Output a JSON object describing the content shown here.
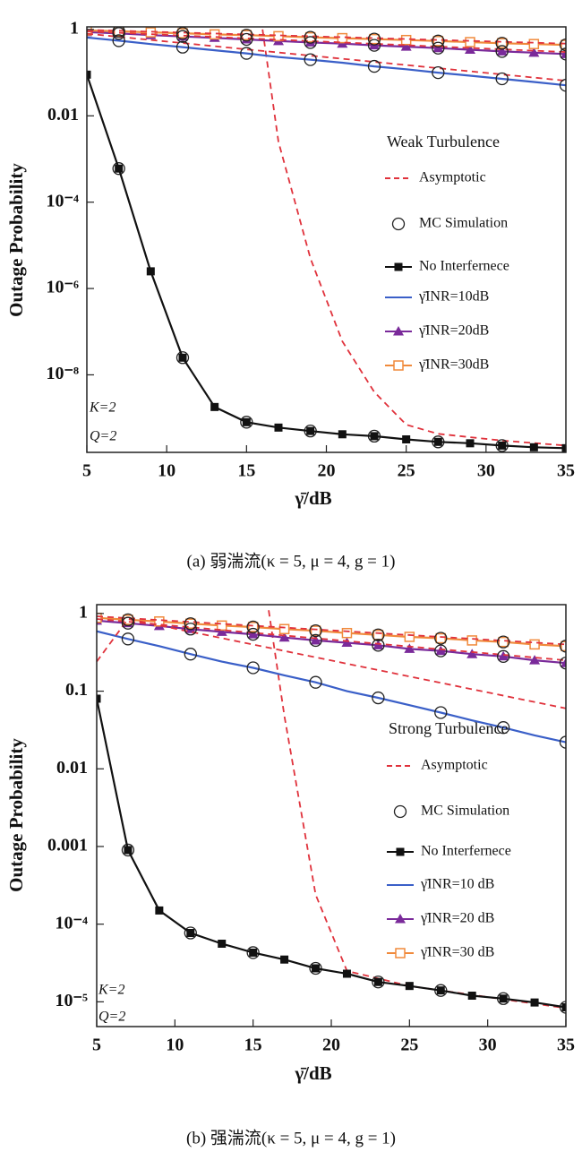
{
  "chart_data": [
    {
      "type": "line",
      "log_y": true,
      "y_label": "Outage Probability",
      "x_label": "γ̄/dB",
      "legend_title": "Weak Turbulence",
      "annotations": [
        "K=2",
        "Q=2"
      ],
      "caption": "(a)  弱湍流(κ = 5, μ = 4, g = 1)",
      "xlim": [
        5,
        35
      ],
      "xticks": [
        5,
        10,
        15,
        20,
        25,
        30,
        35
      ],
      "ylim": [
        1.6e-10,
        1.15
      ],
      "yticks": [
        1,
        0.01,
        {
          "value": 0.0001,
          "label": "10⁻⁴"
        },
        {
          "value": 1e-06,
          "label": "10⁻⁶"
        },
        {
          "value": 1e-08,
          "label": "10⁻⁸"
        }
      ],
      "series": [
        {
          "name": "Asymptotic",
          "color": "#e0323c",
          "style": "dashed",
          "line": true,
          "x": [
            16,
            17,
            19,
            21,
            23,
            25,
            27,
            31,
            35
          ],
          "values": [
            1,
            0.0025,
            5e-06,
            6e-08,
            4e-09,
            7e-10,
            4.3e-10,
            3e-10,
            2.3e-10
          ]
        },
        {
          "name": "MC Simulation",
          "color": "#222222",
          "line": false,
          "marker": "circle",
          "x": [
            7,
            11,
            15,
            19,
            23,
            27,
            31
          ],
          "values": [
            0.0006,
            2.5e-08,
            8e-10,
            5e-10,
            3.8e-10,
            2.8e-10,
            2.3e-10
          ]
        },
        {
          "name": "No Interfernece",
          "color": "#111111",
          "style": "solid",
          "line": true,
          "marker": "square",
          "x": [
            5,
            7,
            9,
            11,
            13,
            15,
            17,
            19,
            21,
            23,
            25,
            27,
            29,
            31,
            33,
            35
          ],
          "values": [
            0.09,
            0.0006,
            2.5e-06,
            2.5e-08,
            1.8e-09,
            8e-10,
            6e-10,
            5e-10,
            4.2e-10,
            3.8e-10,
            3.2e-10,
            2.8e-10,
            2.6e-10,
            2.3e-10,
            2.1e-10,
            2e-10
          ]
        },
        {
          "name": "γ̄INR=10dB",
          "color": "#3a5fc8",
          "style": "solid",
          "line": true,
          "x": [
            5,
            7,
            9,
            11,
            13,
            15,
            17,
            19,
            21,
            23,
            25,
            27,
            29,
            31,
            33,
            35
          ],
          "values": [
            0.65,
            0.55,
            0.46,
            0.39,
            0.33,
            0.28,
            0.23,
            0.2,
            0.17,
            0.14,
            0.12,
            0.1,
            0.085,
            0.072,
            0.061,
            0.051
          ]
        },
        {
          "name": "γ̄INR=20dB",
          "color": "#7a2a9a",
          "style": "solid",
          "line": true,
          "marker": "triangle",
          "x": [
            5,
            7,
            9,
            11,
            13,
            15,
            17,
            19,
            21,
            23,
            25,
            27,
            29,
            31,
            33,
            35
          ],
          "values": [
            0.87,
            0.81,
            0.74,
            0.69,
            0.64,
            0.59,
            0.54,
            0.5,
            0.47,
            0.43,
            0.4,
            0.37,
            0.34,
            0.31,
            0.29,
            0.27
          ]
        },
        {
          "name": "γ̄INR=30dB",
          "color": "#f08a3c",
          "style": "solid",
          "line": true,
          "marker": "open-square",
          "x": [
            5,
            7,
            9,
            11,
            13,
            15,
            17,
            19,
            21,
            23,
            25,
            27,
            29,
            31,
            33,
            35
          ],
          "values": [
            0.95,
            0.91,
            0.86,
            0.82,
            0.77,
            0.74,
            0.7,
            0.66,
            0.63,
            0.6,
            0.57,
            0.54,
            0.51,
            0.48,
            0.46,
            0.44
          ]
        },
        {
          "color": "#e0323c",
          "style": "dashed",
          "line": true,
          "x": [
            5,
            35
          ],
          "values": [
            0.8,
            0.065
          ]
        },
        {
          "color": "#e0323c",
          "style": "dashed",
          "line": true,
          "x": [
            5,
            35
          ],
          "values": [
            0.9,
            0.3
          ]
        },
        {
          "color": "#e0323c",
          "style": "dashed",
          "line": true,
          "x": [
            5,
            35
          ],
          "values": [
            0.98,
            0.47
          ]
        },
        {
          "color": "#222222",
          "line": false,
          "marker": "circle",
          "x": [
            7,
            11,
            15,
            19,
            23,
            27,
            31,
            35
          ],
          "values": [
            0.55,
            0.39,
            0.28,
            0.2,
            0.14,
            0.1,
            0.072,
            0.051
          ]
        },
        {
          "color": "#222222",
          "line": false,
          "marker": "circle",
          "x": [
            7,
            11,
            15,
            19,
            23,
            27,
            31,
            35
          ],
          "values": [
            0.81,
            0.69,
            0.59,
            0.5,
            0.43,
            0.37,
            0.31,
            0.27
          ]
        },
        {
          "color": "#222222",
          "line": false,
          "marker": "circle",
          "x": [
            7,
            11,
            15,
            19,
            23,
            27,
            31,
            35
          ],
          "values": [
            0.91,
            0.82,
            0.74,
            0.66,
            0.6,
            0.54,
            0.48,
            0.44
          ]
        }
      ]
    },
    {
      "type": "line",
      "log_y": true,
      "y_label": "Outage Probability",
      "x_label": "γ̄/dB",
      "legend_title": "Strong Turbulence",
      "annotations": [
        "K=2",
        "Q=2"
      ],
      "caption": "(b)  强湍流(κ = 5, μ = 4, g = 1)",
      "xlim": [
        5,
        35
      ],
      "xticks": [
        5,
        10,
        15,
        20,
        25,
        30,
        35
      ],
      "ylim": [
        4.8e-06,
        1.3
      ],
      "yticks": [
        1,
        0.1,
        0.01,
        0.001,
        {
          "value": 0.0001,
          "label": "10⁻⁴"
        },
        {
          "value": 1e-05,
          "label": "10⁻⁵"
        }
      ],
      "series": [
        {
          "name": "Asymptotic",
          "color": "#e0323c",
          "style": "dashed",
          "line": true,
          "x": [
            16,
            17,
            19,
            21,
            25,
            35
          ],
          "values": [
            1.1,
            0.048,
            0.00024,
            2.5e-05,
            1.6e-05,
            8.3e-06
          ]
        },
        {
          "name": "MC Simulation",
          "color": "#222222",
          "line": false,
          "marker": "circle",
          "x": [
            7,
            11,
            15,
            19,
            23,
            27,
            31,
            35
          ],
          "values": [
            0.0009,
            7.7e-05,
            4.3e-05,
            2.7e-05,
            1.8e-05,
            1.4e-05,
            1.1e-05,
            8.5e-06
          ]
        },
        {
          "name": "No Interfernece",
          "color": "#111111",
          "style": "solid",
          "line": true,
          "marker": "square",
          "x": [
            5,
            7,
            9,
            11,
            13,
            15,
            17,
            19,
            21,
            23,
            25,
            27,
            29,
            31,
            33,
            35
          ],
          "values": [
            0.08,
            0.0009,
            0.00015,
            7.7e-05,
            5.6e-05,
            4.3e-05,
            3.5e-05,
            2.7e-05,
            2.3e-05,
            1.8e-05,
            1.6e-05,
            1.4e-05,
            1.2e-05,
            1.1e-05,
            9.8e-06,
            8.5e-06
          ]
        },
        {
          "name": "γ̄INR=10 dB",
          "color": "#3a5fc8",
          "style": "solid",
          "line": true,
          "x": [
            5,
            7,
            9,
            11,
            13,
            15,
            17,
            19,
            21,
            23,
            25,
            27,
            29,
            31,
            33,
            35
          ],
          "values": [
            0.59,
            0.47,
            0.38,
            0.3,
            0.24,
            0.2,
            0.16,
            0.13,
            0.1,
            0.082,
            0.066,
            0.053,
            0.042,
            0.034,
            0.027,
            0.022
          ]
        },
        {
          "name": "γ̄INR=20 dB",
          "color": "#7a2a9a",
          "style": "solid",
          "line": true,
          "marker": "triangle",
          "x": [
            5,
            7,
            9,
            11,
            13,
            15,
            17,
            19,
            21,
            23,
            25,
            27,
            29,
            31,
            33,
            35
          ],
          "values": [
            0.81,
            0.75,
            0.69,
            0.63,
            0.58,
            0.54,
            0.49,
            0.45,
            0.42,
            0.39,
            0.35,
            0.33,
            0.3,
            0.28,
            0.25,
            0.23
          ]
        },
        {
          "name": "γ̄INR=30 dB",
          "color": "#f08a3c",
          "style": "solid",
          "line": true,
          "marker": "open-square",
          "x": [
            5,
            7,
            9,
            11,
            13,
            15,
            17,
            19,
            21,
            23,
            25,
            27,
            29,
            31,
            33,
            35
          ],
          "values": [
            0.88,
            0.83,
            0.79,
            0.74,
            0.7,
            0.67,
            0.63,
            0.6,
            0.56,
            0.53,
            0.5,
            0.48,
            0.45,
            0.43,
            0.4,
            0.38
          ]
        },
        {
          "color": "#e0323c",
          "style": "dashed",
          "line": true,
          "x": [
            5,
            7,
            35
          ],
          "values": [
            0.24,
            0.85,
            0.06
          ]
        },
        {
          "color": "#e0323c",
          "style": "dashed",
          "line": true,
          "x": [
            5,
            35
          ],
          "values": [
            0.85,
            0.25
          ]
        },
        {
          "color": "#e0323c",
          "style": "dashed",
          "line": true,
          "x": [
            5,
            35
          ],
          "values": [
            0.92,
            0.4
          ]
        },
        {
          "color": "#222222",
          "line": false,
          "marker": "circle",
          "x": [
            7,
            11,
            15,
            19,
            23,
            27,
            31,
            35
          ],
          "values": [
            0.47,
            0.3,
            0.2,
            0.13,
            0.082,
            0.053,
            0.034,
            0.022
          ]
        },
        {
          "color": "#222222",
          "line": false,
          "marker": "circle",
          "x": [
            7,
            11,
            15,
            19,
            23,
            27,
            31,
            35
          ],
          "values": [
            0.75,
            0.63,
            0.54,
            0.45,
            0.39,
            0.33,
            0.28,
            0.23
          ]
        },
        {
          "color": "#222222",
          "line": false,
          "marker": "circle",
          "x": [
            7,
            11,
            15,
            19,
            23,
            27,
            31,
            35
          ],
          "values": [
            0.83,
            0.74,
            0.67,
            0.6,
            0.53,
            0.48,
            0.43,
            0.38
          ]
        }
      ]
    }
  ]
}
